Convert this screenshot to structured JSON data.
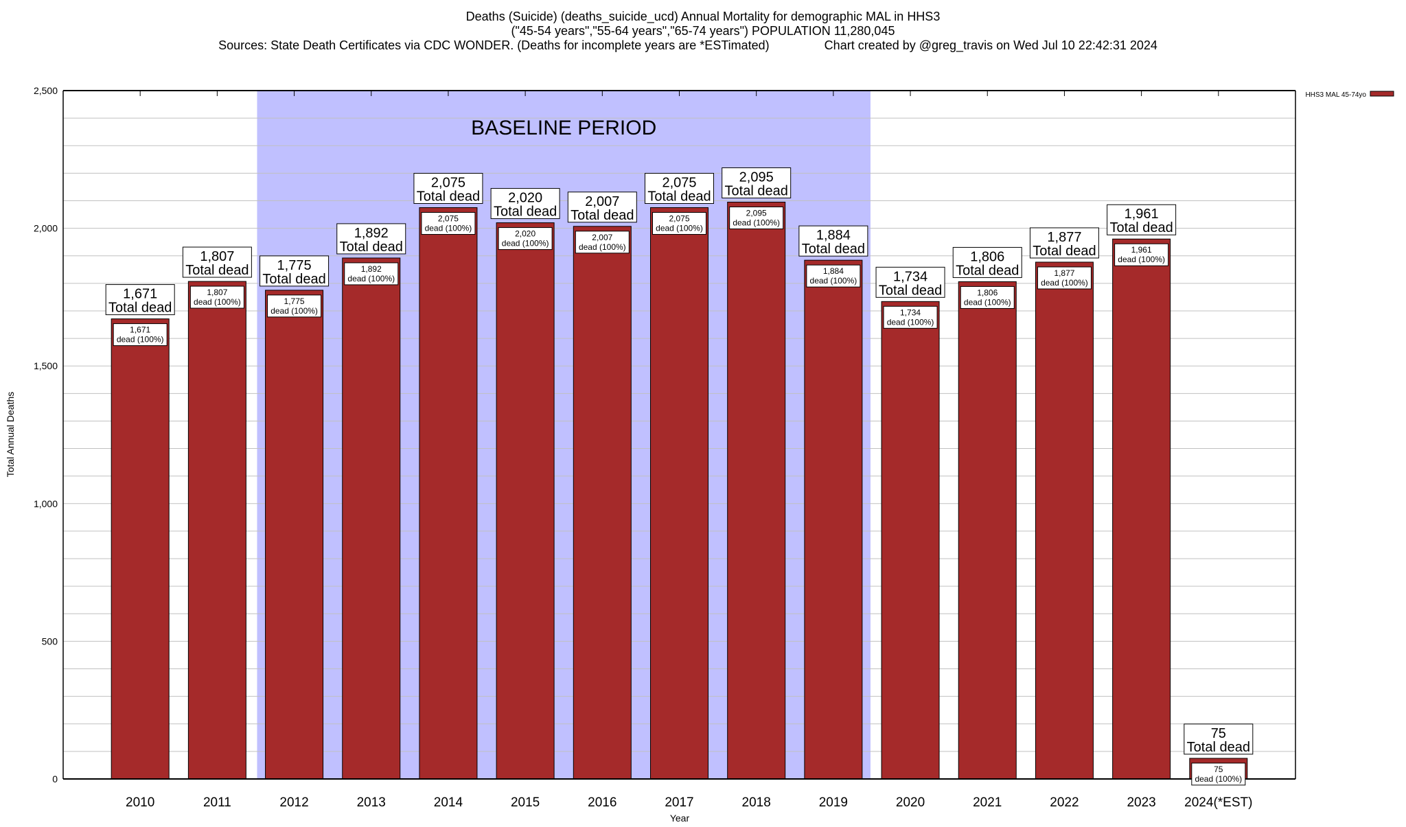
{
  "chart_data": {
    "type": "bar",
    "title_lines": [
      "Deaths (Suicide) (deaths_suicide_ucd) Annual Mortality for demographic MAL in HHS3",
      "(\"45-54 years\",\"55-64 years\",\"65-74 years\") POPULATION 11,280,045",
      "Sources: State Death Certificates via CDC WONDER. (Deaths for incomplete years are *ESTimated)                Chart created by @greg_travis on Wed Jul 10 22:42:31 2024"
    ],
    "xlabel": "Year",
    "ylabel": "Total Annual Deaths",
    "ylim": [
      0,
      2500
    ],
    "yticks": [
      0,
      500,
      1000,
      1500,
      2000,
      2500
    ],
    "ytick_labels": [
      "0",
      "500",
      "1,000",
      "1,500",
      "2,000",
      "2,500"
    ],
    "minor_grid_step": 100,
    "grid": true,
    "categories": [
      "2010",
      "2011",
      "2012",
      "2013",
      "2014",
      "2015",
      "2016",
      "2017",
      "2018",
      "2019",
      "2020",
      "2021",
      "2022",
      "2023",
      "2024(*EST)"
    ],
    "series": [
      {
        "name": "HHS3 MAL 45-74yo",
        "color": "#a52a2a",
        "values": [
          1671,
          1807,
          1775,
          1892,
          2075,
          2020,
          2007,
          2075,
          2095,
          1884,
          1734,
          1806,
          1877,
          1961,
          75
        ],
        "value_labels": [
          "1,671",
          "1,807",
          "1,775",
          "1,892",
          "2,075",
          "2,020",
          "2,007",
          "2,075",
          "2,095",
          "1,884",
          "1,734",
          "1,806",
          "1,877",
          "1,961",
          "75"
        ]
      }
    ],
    "top_label_suffix": "Total dead",
    "inner_label_suffix": "dead (100%)",
    "shaded_region": {
      "label": "BASELINE PERIOD",
      "from": "2012",
      "to": "2019",
      "color": "#c0c0ff"
    },
    "legend": {
      "label": "HHS3 MAL 45-74yo",
      "placement": "right"
    }
  }
}
